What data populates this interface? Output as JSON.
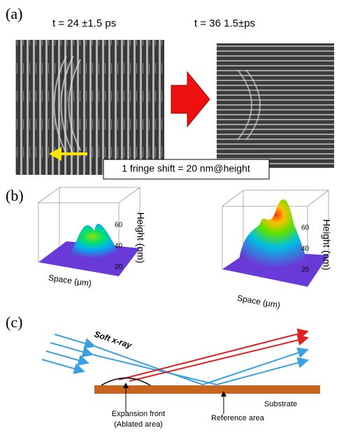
{
  "panel_a": {
    "label": "(a)",
    "left_time": "t = 24 ±1.5 ps",
    "right_time": "t = 36 1.5±ps",
    "fringe_note": "1 fringe shift = 20 nm@height"
  },
  "panel_b": {
    "label": "(b)",
    "plots": [
      {
        "z_axis_label": "Height (nm)",
        "x_axis_label": "Space (μm)",
        "z_ticks": [
          "60",
          "40",
          "20"
        ]
      },
      {
        "z_axis_label": "Height (nm)",
        "x_axis_label": "Space (μm)",
        "z_ticks": [
          "60",
          "40",
          "20"
        ]
      }
    ]
  },
  "panel_c": {
    "label": "(c)",
    "beam_label": "Soft x-ray",
    "expansion_label": "Expansion front",
    "ablated_label": "(Ablated area)",
    "reference_label": "Reference area",
    "substrate_label": "Substrate"
  }
}
